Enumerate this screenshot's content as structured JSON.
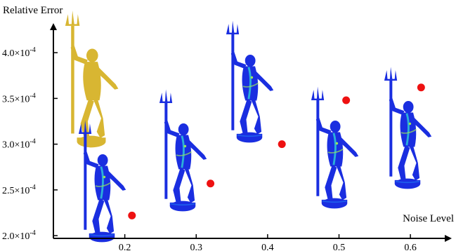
{
  "chart_data": {
    "type": "scatter",
    "ylabel": "Relative Error",
    "xlabel": "Noise Level",
    "x_ticks": [
      "0.2",
      "0.3",
      "0.4",
      "0.5",
      "0.6"
    ],
    "y_ticks": [
      {
        "mant": "2.0",
        "exp": "-4"
      },
      {
        "mant": "2.5",
        "exp": "-4"
      },
      {
        "mant": "3.0",
        "exp": "-4"
      },
      {
        "mant": "3.5",
        "exp": "-4"
      },
      {
        "mant": "4.0",
        "exp": "-4"
      }
    ],
    "xlim": [
      0.1,
      0.655
    ],
    "ylim": [
      0.000197,
      0.00043
    ],
    "series": [
      {
        "points": [
          {
            "x": 0.21,
            "y": 0.000222
          },
          {
            "x": 0.32,
            "y": 0.000257
          },
          {
            "x": 0.42,
            "y": 0.0003
          },
          {
            "x": 0.51,
            "y": 0.000348
          },
          {
            "x": 0.615,
            "y": 0.000362
          }
        ],
        "color": "#ee1111"
      }
    ],
    "axis_color": "#000000",
    "inset_model_color": "#d8b632",
    "heatmap_colors": [
      "#1a2ee0",
      "#1f6cf0",
      "#2fd0d8",
      "#9be65a"
    ],
    "grid": false
  }
}
